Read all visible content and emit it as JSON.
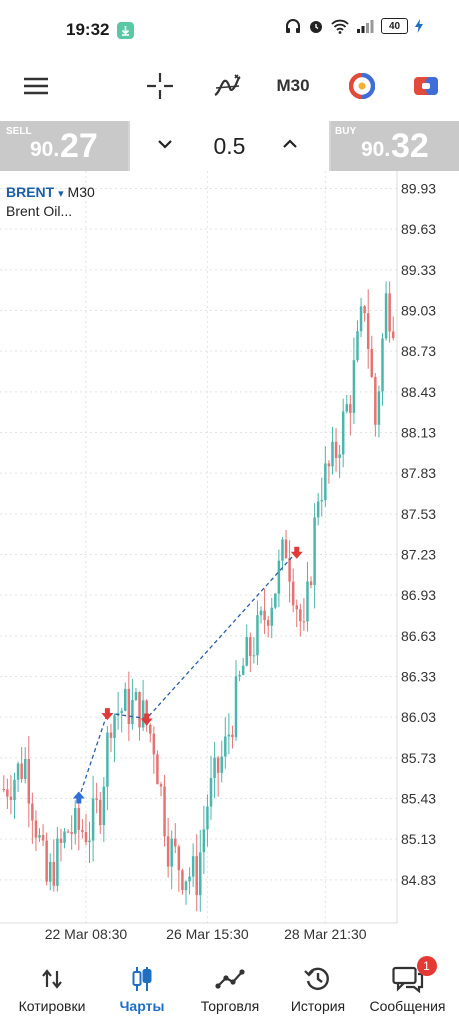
{
  "status_bar": {
    "time": "19:32",
    "battery": "40"
  },
  "toolbar": {
    "timeframe": "M30"
  },
  "trade": {
    "sell": {
      "caption": "SELL",
      "price_small": "90.",
      "price_big": "27"
    },
    "buy": {
      "caption": "BUY",
      "price_small": "90.",
      "price_big": "32"
    },
    "lot": "0.5"
  },
  "chart": {
    "symbol": "BRENT",
    "symbol_arrow": "▾",
    "timeframe": "M30",
    "description": "Brent Oil...",
    "bull_color": "#4db6ac",
    "bear_color": "#e57373"
  },
  "chart_data": {
    "type": "candlestick",
    "ylim": [
      84.6,
      90.0
    ],
    "y_ticks": [
      "89.93",
      "89.63",
      "89.33",
      "89.03",
      "88.73",
      "88.43",
      "88.13",
      "87.83",
      "87.53",
      "87.23",
      "86.93",
      "86.63",
      "86.33",
      "86.03",
      "85.73",
      "85.43",
      "85.13",
      "84.83"
    ],
    "y_tick_values": [
      89.93,
      89.63,
      89.33,
      89.03,
      88.73,
      88.43,
      88.13,
      87.83,
      87.53,
      87.23,
      86.93,
      86.63,
      86.33,
      86.03,
      85.73,
      85.43,
      85.13,
      84.83
    ],
    "x_ticks": [
      "22 Mar 08:30",
      "26 Mar 15:30",
      "28 Mar 21:30"
    ],
    "x_tick_index": [
      23,
      57,
      90
    ],
    "bar_count": 110,
    "path": [
      [
        0,
        85.5
      ],
      [
        6,
        85.7
      ],
      [
        12,
        84.8
      ],
      [
        18,
        85.2
      ],
      [
        24,
        85.2
      ],
      [
        27,
        85.4
      ],
      [
        30,
        86.05
      ],
      [
        34,
        86.1
      ],
      [
        38,
        86.1
      ],
      [
        42,
        85.85
      ],
      [
        46,
        85.1
      ],
      [
        50,
        84.9
      ],
      [
        54,
        84.85
      ],
      [
        57,
        85.4
      ],
      [
        62,
        85.8
      ],
      [
        67,
        86.4
      ],
      [
        72,
        86.7
      ],
      [
        76,
        87.0
      ],
      [
        79,
        87.3
      ],
      [
        84,
        86.6
      ],
      [
        88,
        87.7
      ],
      [
        92,
        87.9
      ],
      [
        97,
        88.4
      ],
      [
        101,
        89.1
      ],
      [
        104,
        88.2
      ],
      [
        107,
        89.1
      ],
      [
        109,
        89.0
      ]
    ],
    "trades": [
      {
        "index": 21,
        "price": 85.43,
        "direction": "buy"
      },
      {
        "index": 29,
        "price": 86.06,
        "direction": "sell"
      },
      {
        "index": 40,
        "price": 86.02,
        "direction": "sell"
      },
      {
        "index": 82,
        "price": 87.25,
        "direction": "sell"
      }
    ]
  },
  "bottom_nav": {
    "items": [
      {
        "key": "quotes",
        "label": "Котировки",
        "icon": "arrows-updown-icon",
        "active": false
      },
      {
        "key": "charts",
        "label": "Чарты",
        "icon": "candles-icon",
        "active": true
      },
      {
        "key": "trade",
        "label": "Торговля",
        "icon": "trade-line-icon",
        "active": false
      },
      {
        "key": "history",
        "label": "История",
        "icon": "history-icon",
        "active": false
      },
      {
        "key": "messages",
        "label": "Сообщения",
        "icon": "chat-icon",
        "active": false,
        "badge": "1"
      }
    ]
  }
}
